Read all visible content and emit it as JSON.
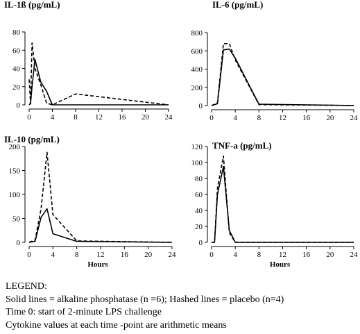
{
  "chart_data": [
    {
      "type": "line",
      "title": "IL-1ß (pg/mL)",
      "xlabel": "",
      "ylabel": "",
      "xlim": [
        0,
        24
      ],
      "ylim": [
        0,
        80
      ],
      "x_ticks": [
        0,
        4,
        8,
        12,
        16,
        20,
        24
      ],
      "y_ticks": [
        0,
        20,
        40,
        60,
        80
      ],
      "series": [
        {
          "style": "solid",
          "x": [
            0,
            0.25,
            0.5,
            1,
            2,
            3,
            4,
            8,
            24
          ],
          "y": [
            0,
            2,
            20,
            50,
            25,
            15,
            0,
            0,
            0
          ]
        },
        {
          "style": "dashed",
          "x": [
            0,
            0.25,
            0.5,
            1,
            2,
            3,
            4,
            8,
            24
          ],
          "y": [
            28,
            1,
            68,
            40,
            22,
            2,
            0,
            12,
            0
          ]
        }
      ]
    },
    {
      "type": "line",
      "title": "IL-6 (pg/mL)",
      "xlabel": "",
      "ylabel": "",
      "xlim": [
        0,
        24
      ],
      "ylim": [
        0,
        800
      ],
      "x_ticks": [
        0,
        4,
        8,
        12,
        16,
        20,
        24
      ],
      "y_ticks": [
        0,
        200,
        400,
        600,
        800
      ],
      "series": [
        {
          "style": "solid",
          "x": [
            0,
            1,
            2,
            3,
            4,
            8,
            24
          ],
          "y": [
            0,
            20,
            610,
            620,
            520,
            15,
            0
          ]
        },
        {
          "style": "dashed",
          "x": [
            0,
            1,
            2,
            3,
            4,
            8,
            24
          ],
          "y": [
            0,
            30,
            680,
            680,
            500,
            10,
            0
          ]
        }
      ]
    },
    {
      "type": "line",
      "title": "IL-10 (pg/mL)",
      "xlabel": "Hours",
      "ylabel": "",
      "xlim": [
        0,
        24
      ],
      "ylim": [
        0,
        200
      ],
      "x_ticks": [
        0,
        4,
        8,
        12,
        16,
        20,
        24
      ],
      "y_ticks": [
        0,
        50,
        100,
        150,
        200
      ],
      "series": [
        {
          "style": "solid",
          "x": [
            0,
            1,
            2,
            3,
            4,
            8,
            24
          ],
          "y": [
            0,
            2,
            52,
            70,
            18,
            2,
            0
          ]
        },
        {
          "style": "dashed",
          "x": [
            0,
            1,
            2,
            3,
            4,
            8,
            24
          ],
          "y": [
            0,
            5,
            70,
            188,
            58,
            3,
            0
          ]
        }
      ]
    },
    {
      "type": "line",
      "title": "TNF-a (pg/mL)",
      "xlabel": "Hours",
      "ylabel": "",
      "xlim": [
        0,
        24
      ],
      "ylim": [
        0,
        120
      ],
      "x_ticks": [
        0,
        4,
        8,
        12,
        16,
        20,
        24
      ],
      "y_ticks": [
        0,
        20,
        40,
        60,
        80,
        100,
        120
      ],
      "series": [
        {
          "style": "solid",
          "x": [
            0,
            0.5,
            1,
            2,
            3,
            4,
            24
          ],
          "y": [
            0,
            0,
            60,
            95,
            15,
            0,
            0
          ]
        },
        {
          "style": "dashed",
          "x": [
            0,
            0.5,
            1,
            2,
            3,
            4,
            24
          ],
          "y": [
            0,
            0,
            68,
            108,
            12,
            0,
            0
          ]
        }
      ]
    }
  ],
  "legend": {
    "heading": "LEGEND:",
    "lines": [
      "Solid lines = alkaline phosphatase (n  =6); Hashed lines = placebo (n=4)",
      "Time 0: start of 2-minute LPS challenge",
      "Cytokine values at each time  -point are arithmetic means"
    ]
  }
}
